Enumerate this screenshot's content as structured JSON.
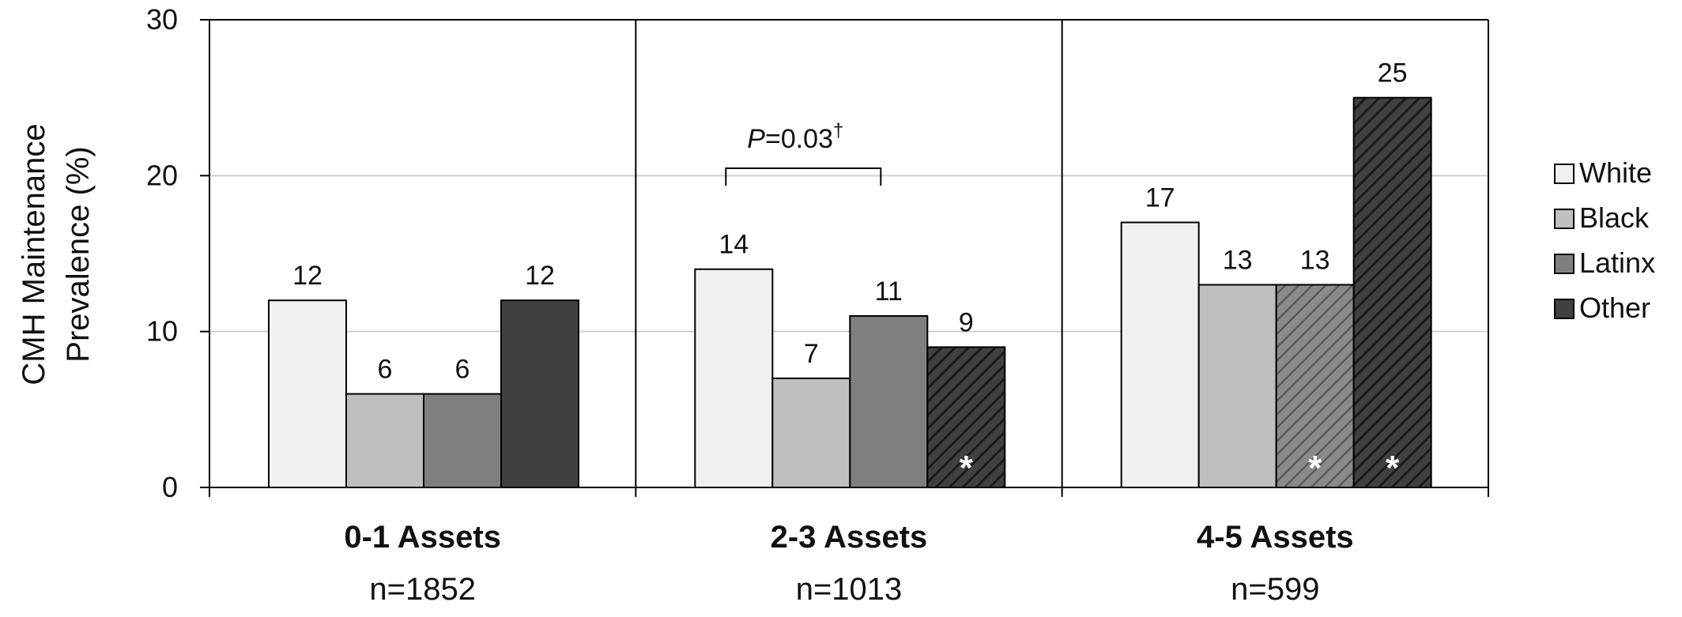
{
  "chart_data": {
    "type": "bar",
    "ylabel_lines": [
      "CMH Maintenance",
      "Prevalence (%)"
    ],
    "ylim": [
      0,
      30
    ],
    "yticks": [
      "0",
      "10",
      "20",
      "30"
    ],
    "grid": true,
    "legend_position": "right",
    "groups": [
      {
        "label": "0-1 Assets",
        "n": "n=1852"
      },
      {
        "label": "2-3 Assets",
        "n": "n=1013"
      },
      {
        "label": "4-5 Assets",
        "n": "n=599"
      }
    ],
    "series": [
      {
        "name": "White",
        "color": "#f0f0f0",
        "values": [
          12,
          14,
          17
        ],
        "labels": [
          "12",
          "14",
          "17"
        ]
      },
      {
        "name": "Black",
        "color": "#bfbfbf",
        "values": [
          6,
          7,
          13
        ],
        "labels": [
          "6",
          "7",
          "13"
        ]
      },
      {
        "name": "Latinx",
        "color": "#7f7f7f",
        "values": [
          6,
          11,
          13
        ],
        "labels": [
          "6",
          "11",
          "13"
        ]
      },
      {
        "name": "Other",
        "color": "#404040",
        "values": [
          12,
          9,
          25
        ],
        "labels": [
          "12",
          "9",
          "25"
        ]
      }
    ],
    "hatched": [
      [
        3,
        1
      ],
      [
        2,
        2
      ],
      [
        3,
        2
      ]
    ],
    "star_marker": "*",
    "annotation": {
      "group": 1,
      "from_series": 0,
      "to_series": 2,
      "p_italic": "P",
      "p_rest": "=0.03",
      "p_sup": "†"
    }
  }
}
